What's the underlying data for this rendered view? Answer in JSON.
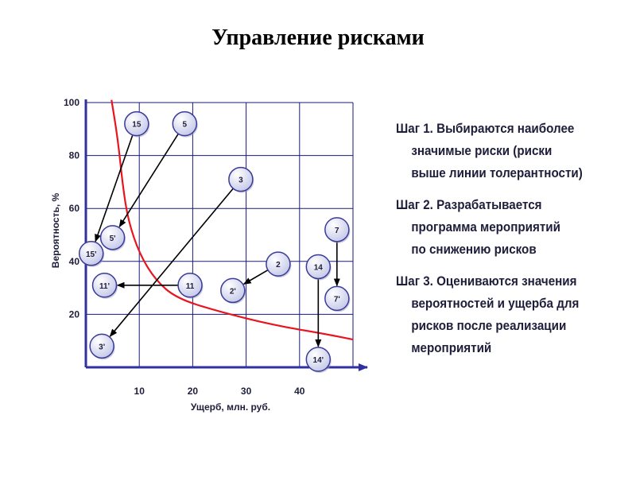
{
  "title": "Управление рисками",
  "chart_data": {
    "type": "scatter",
    "xlabel": "Ущерб, млн. руб.",
    "ylabel": "Вероятность, %",
    "xlim": [
      0,
      50
    ],
    "ylim": [
      0,
      100
    ],
    "x_ticks": [
      "10",
      "20",
      "30",
      "40"
    ],
    "y_ticks": [
      "20",
      "40",
      "60",
      "80",
      "100"
    ],
    "grid": true,
    "colors": {
      "tolerance_curve": "#e8141e",
      "grid": "#1a1a78",
      "axis": "#3030a0",
      "point_fill": "#d8dcf0",
      "point_stroke": "#3a3a9a",
      "arrow": "#000000"
    },
    "tolerance_curve": [
      {
        "x": 4.8,
        "y": 101
      },
      {
        "x": 6,
        "y": 86
      },
      {
        "x": 7,
        "y": 67
      },
      {
        "x": 8,
        "y": 55
      },
      {
        "x": 10,
        "y": 43
      },
      {
        "x": 13,
        "y": 33
      },
      {
        "x": 17,
        "y": 26
      },
      {
        "x": 25,
        "y": 21
      },
      {
        "x": 35,
        "y": 16
      },
      {
        "x": 45,
        "y": 12.5
      },
      {
        "x": 50,
        "y": 10.5
      }
    ],
    "points": [
      {
        "label": "15",
        "x": 9.5,
        "y": 92
      },
      {
        "label": "5",
        "x": 18.5,
        "y": 92
      },
      {
        "label": "3",
        "x": 29,
        "y": 71
      },
      {
        "label": "7",
        "x": 47,
        "y": 52
      },
      {
        "label": "2",
        "x": 36,
        "y": 39
      },
      {
        "label": "14",
        "x": 43.5,
        "y": 38
      },
      {
        "label": "11",
        "x": 19.5,
        "y": 31
      },
      {
        "label": "15'",
        "x": 1,
        "y": 43
      },
      {
        "label": "5'",
        "x": 5,
        "y": 49
      },
      {
        "label": "11'",
        "x": 3.5,
        "y": 31
      },
      {
        "label": "2'",
        "x": 27.5,
        "y": 29
      },
      {
        "label": "7'",
        "x": 47,
        "y": 26
      },
      {
        "label": "3'",
        "x": 3,
        "y": 8
      },
      {
        "label": "14'",
        "x": 43.5,
        "y": 3
      }
    ],
    "arrows": [
      {
        "from": "15",
        "to": "15'"
      },
      {
        "from": "5",
        "to": "5'"
      },
      {
        "from": "3",
        "to": "3'"
      },
      {
        "from": "11",
        "to": "11'"
      },
      {
        "from": "2",
        "to": "2'"
      },
      {
        "from": "14",
        "to": "14'"
      },
      {
        "from": "7",
        "to": "7'"
      }
    ]
  },
  "steps": [
    {
      "lines": [
        "Шаг 1. Выбираются наиболее",
        "значимые риски (риски",
        "выше линии толерантности)"
      ]
    },
    {
      "lines": [
        "Шаг 2. Разрабатывается",
        "программа мероприятий",
        "по снижению рисков"
      ]
    },
    {
      "lines": [
        "Шаг 3. Оцениваются значения",
        "вероятностей и ущерба для",
        "рисков после реализации",
        "мероприятий"
      ]
    }
  ]
}
